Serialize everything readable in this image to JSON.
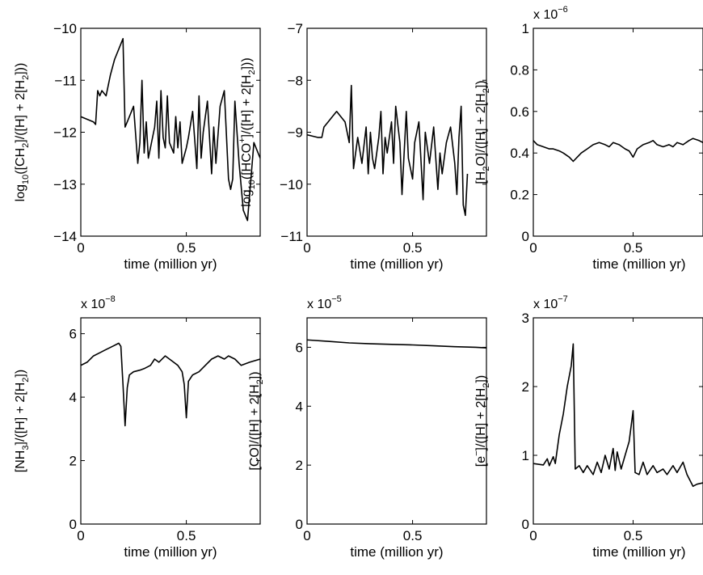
{
  "chart_data": [
    {
      "type": "line",
      "ylabel_parts": [
        "log",
        "10",
        "([CH",
        "2",
        "]/([H] + 2[H",
        "2",
        "]))"
      ],
      "xlabel": "time (million yr)",
      "xlim": [
        0,
        0.85
      ],
      "ylim": [
        -14,
        -10
      ],
      "xticks": [
        0,
        0.5
      ],
      "xtick_labels": [
        "0",
        "0.5"
      ],
      "yticks": [
        -14,
        -13,
        -12,
        -11,
        -10
      ],
      "ytick_labels": [
        "−14",
        "−13",
        "−12",
        "−11",
        "−10"
      ],
      "multiplier": {
        "base": "",
        "exp": ""
      },
      "x": [
        0,
        0.06,
        0.07,
        0.08,
        0.09,
        0.1,
        0.12,
        0.14,
        0.16,
        0.18,
        0.2,
        0.21,
        0.22,
        0.25,
        0.27,
        0.28,
        0.29,
        0.3,
        0.31,
        0.32,
        0.34,
        0.35,
        0.36,
        0.37,
        0.38,
        0.39,
        0.4,
        0.41,
        0.42,
        0.44,
        0.45,
        0.46,
        0.47,
        0.48,
        0.5,
        0.51,
        0.53,
        0.55,
        0.56,
        0.57,
        0.58,
        0.6,
        0.62,
        0.63,
        0.64,
        0.66,
        0.68,
        0.7,
        0.71,
        0.72,
        0.73,
        0.75,
        0.77,
        0.79,
        0.82,
        0.85
      ],
      "y": [
        -11.7,
        -11.8,
        -11.85,
        -11.2,
        -11.3,
        -11.2,
        -11.3,
        -10.9,
        -10.6,
        -10.4,
        -10.2,
        -11.9,
        -11.8,
        -11.5,
        -12.6,
        -12.2,
        -11.0,
        -12.4,
        -11.8,
        -12.5,
        -12.1,
        -11.9,
        -11.4,
        -12.5,
        -11.2,
        -12.1,
        -12.3,
        -11.3,
        -12.2,
        -12.4,
        -11.7,
        -12.3,
        -11.8,
        -12.6,
        -12.3,
        -12.1,
        -11.6,
        -12.7,
        -11.3,
        -12.5,
        -12.0,
        -11.4,
        -12.8,
        -11.9,
        -12.6,
        -11.5,
        -11.2,
        -12.9,
        -13.1,
        -12.9,
        -11.4,
        -12.6,
        -13.5,
        -13.7,
        -12.2,
        -12.5
      ]
    },
    {
      "type": "line",
      "ylabel_parts": [
        "log",
        "10",
        "([HCO",
        "+",
        "]/([H] + 2[H",
        "2",
        "]))"
      ],
      "xlabel": "time (million yr)",
      "xlim": [
        0,
        0.85
      ],
      "ylim": [
        -11,
        -7
      ],
      "xticks": [
        0,
        0.5
      ],
      "xtick_labels": [
        "0",
        "0.5"
      ],
      "yticks": [
        -11,
        -10,
        -9,
        -8,
        -7
      ],
      "ytick_labels": [
        "−11",
        "−10",
        "−9",
        "−8",
        "−7"
      ],
      "multiplier": {
        "base": "",
        "exp": ""
      },
      "x": [
        0,
        0.05,
        0.07,
        0.08,
        0.1,
        0.12,
        0.14,
        0.16,
        0.18,
        0.2,
        0.21,
        0.22,
        0.24,
        0.26,
        0.28,
        0.29,
        0.3,
        0.31,
        0.32,
        0.34,
        0.35,
        0.36,
        0.37,
        0.38,
        0.4,
        0.41,
        0.42,
        0.44,
        0.45,
        0.47,
        0.48,
        0.5,
        0.51,
        0.53,
        0.55,
        0.56,
        0.58,
        0.6,
        0.62,
        0.63,
        0.64,
        0.66,
        0.68,
        0.7,
        0.71,
        0.72,
        0.73,
        0.74,
        0.75,
        0.76
      ],
      "y": [
        -9.05,
        -9.1,
        -9.1,
        -8.9,
        -8.8,
        -8.7,
        -8.6,
        -8.7,
        -8.8,
        -9.2,
        -8.1,
        -9.7,
        -9.1,
        -9.6,
        -8.9,
        -9.8,
        -9.0,
        -9.5,
        -9.7,
        -9.1,
        -8.6,
        -9.8,
        -9.1,
        -9.4,
        -8.8,
        -9.6,
        -8.5,
        -9.2,
        -10.2,
        -8.6,
        -9.5,
        -9.9,
        -9.2,
        -8.8,
        -10.3,
        -9.0,
        -9.6,
        -8.9,
        -10.1,
        -9.4,
        -9.8,
        -9.2,
        -8.9,
        -9.6,
        -10.2,
        -9.1,
        -8.5,
        -10.4,
        -10.6,
        -9.8
      ]
    },
    {
      "type": "line",
      "ylabel_parts": [
        "[H",
        "2",
        "O]/([H] + 2[H",
        "2",
        "])"
      ],
      "xlabel": "time  (million yr)",
      "xlim": [
        0,
        0.85
      ],
      "ylim": [
        0,
        1
      ],
      "xticks": [
        0,
        0.5
      ],
      "xtick_labels": [
        "0",
        "0.5"
      ],
      "yticks": [
        0,
        0.2,
        0.4,
        0.6,
        0.8,
        1
      ],
      "ytick_labels": [
        "0",
        "0.2",
        "0.4",
        "0.6",
        "0.8",
        "1"
      ],
      "multiplier": {
        "base": "x 10",
        "exp": "−6"
      },
      "x": [
        0,
        0.02,
        0.05,
        0.08,
        0.1,
        0.13,
        0.15,
        0.18,
        0.2,
        0.22,
        0.24,
        0.27,
        0.3,
        0.33,
        0.36,
        0.38,
        0.4,
        0.43,
        0.46,
        0.48,
        0.5,
        0.52,
        0.55,
        0.58,
        0.6,
        0.62,
        0.65,
        0.68,
        0.7,
        0.72,
        0.75,
        0.78,
        0.8,
        0.83,
        0.85
      ],
      "y": [
        0.46,
        0.44,
        0.43,
        0.42,
        0.42,
        0.41,
        0.4,
        0.38,
        0.36,
        0.38,
        0.4,
        0.42,
        0.44,
        0.45,
        0.44,
        0.43,
        0.45,
        0.44,
        0.42,
        0.41,
        0.38,
        0.42,
        0.44,
        0.45,
        0.46,
        0.44,
        0.43,
        0.44,
        0.43,
        0.45,
        0.44,
        0.46,
        0.47,
        0.46,
        0.45
      ]
    },
    {
      "type": "line",
      "ylabel_parts": [
        "[NH",
        "3",
        "]/([H] + 2[H",
        "2",
        "])"
      ],
      "xlabel": "time (million yr)",
      "xlim": [
        0,
        0.85
      ],
      "ylim": [
        0,
        6.5
      ],
      "xticks": [
        0,
        0.5
      ],
      "xtick_labels": [
        "0",
        "0.5"
      ],
      "yticks": [
        0,
        2,
        4,
        6
      ],
      "ytick_labels": [
        "0",
        "2",
        "4",
        "6"
      ],
      "multiplier": {
        "base": "x 10",
        "exp": "−8"
      },
      "x": [
        0,
        0.03,
        0.06,
        0.09,
        0.12,
        0.15,
        0.18,
        0.19,
        0.2,
        0.21,
        0.22,
        0.23,
        0.25,
        0.28,
        0.3,
        0.33,
        0.35,
        0.37,
        0.4,
        0.42,
        0.44,
        0.46,
        0.48,
        0.49,
        0.5,
        0.51,
        0.53,
        0.56,
        0.59,
        0.62,
        0.65,
        0.68,
        0.7,
        0.73,
        0.76,
        0.8,
        0.85
      ],
      "y": [
        5.0,
        5.1,
        5.3,
        5.4,
        5.5,
        5.6,
        5.7,
        5.6,
        4.4,
        3.1,
        4.3,
        4.7,
        4.8,
        4.85,
        4.9,
        5.0,
        5.2,
        5.1,
        5.3,
        5.2,
        5.1,
        5.0,
        4.8,
        4.4,
        3.35,
        4.5,
        4.7,
        4.8,
        5.0,
        5.2,
        5.3,
        5.2,
        5.3,
        5.2,
        5.0,
        5.1,
        5.2
      ]
    },
    {
      "type": "line",
      "ylabel_parts": [
        "[CO]/([H] + 2[H",
        "2",
        "])"
      ],
      "xlabel": "time (million yr)",
      "xlim": [
        0,
        0.85
      ],
      "ylim": [
        0,
        7
      ],
      "xticks": [
        0,
        0.5
      ],
      "xtick_labels": [
        "0",
        "0.5"
      ],
      "yticks": [
        0,
        2,
        4,
        6
      ],
      "ytick_labels": [
        "0",
        "2",
        "4",
        "6"
      ],
      "multiplier": {
        "base": "x 10",
        "exp": "−5"
      },
      "x": [
        0,
        0.1,
        0.2,
        0.3,
        0.4,
        0.5,
        0.6,
        0.7,
        0.8,
        0.85
      ],
      "y": [
        6.25,
        6.2,
        6.15,
        6.12,
        6.1,
        6.08,
        6.05,
        6.02,
        6.0,
        5.98
      ]
    },
    {
      "type": "line",
      "ylabel_parts": [
        "[e",
        "−",
        "]/([H] + 2[H",
        "2",
        "])"
      ],
      "xlabel": "time (million yr)",
      "xlim": [
        0,
        0.85
      ],
      "ylim": [
        0,
        3
      ],
      "xticks": [
        0,
        0.5
      ],
      "xtick_labels": [
        "0",
        "0.5"
      ],
      "yticks": [
        0,
        1,
        2,
        3
      ],
      "ytick_labels": [
        "0",
        "1",
        "2",
        "3"
      ],
      "multiplier": {
        "base": "x 10",
        "exp": "−7"
      },
      "x": [
        0,
        0.05,
        0.07,
        0.08,
        0.1,
        0.11,
        0.13,
        0.15,
        0.17,
        0.19,
        0.2,
        0.21,
        0.23,
        0.25,
        0.27,
        0.3,
        0.32,
        0.34,
        0.36,
        0.38,
        0.4,
        0.41,
        0.42,
        0.44,
        0.46,
        0.48,
        0.5,
        0.51,
        0.53,
        0.55,
        0.57,
        0.6,
        0.62,
        0.65,
        0.67,
        0.7,
        0.72,
        0.75,
        0.77,
        0.8,
        0.82,
        0.85
      ],
      "y": [
        0.88,
        0.86,
        0.95,
        0.85,
        0.98,
        0.88,
        1.3,
        1.6,
        2.0,
        2.3,
        2.62,
        0.8,
        0.85,
        0.75,
        0.85,
        0.72,
        0.9,
        0.75,
        1.0,
        0.8,
        1.1,
        0.78,
        1.05,
        0.8,
        1.0,
        1.2,
        1.65,
        0.75,
        0.72,
        0.9,
        0.72,
        0.85,
        0.75,
        0.8,
        0.72,
        0.85,
        0.75,
        0.9,
        0.72,
        0.55,
        0.58,
        0.6
      ]
    }
  ]
}
